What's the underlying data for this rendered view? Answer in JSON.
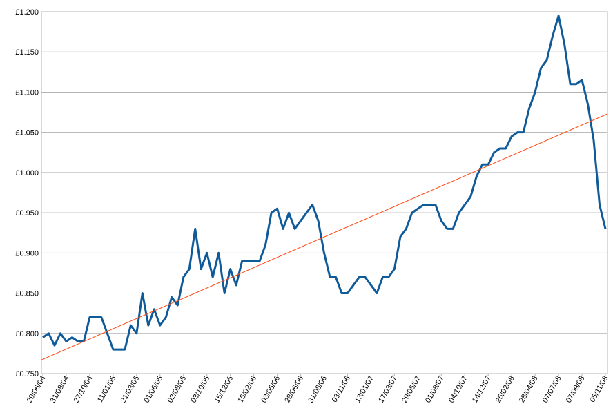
{
  "chart_data": {
    "type": "line",
    "categories": [
      "29/06/04",
      null,
      null,
      null,
      "31/08/04",
      null,
      null,
      null,
      "27/10/04",
      null,
      null,
      null,
      "11/01/05",
      null,
      null,
      null,
      "21/03/05",
      null,
      null,
      null,
      "01/06/05",
      null,
      null,
      null,
      "02/08/05",
      null,
      null,
      null,
      "03/10/05",
      null,
      null,
      null,
      "15/12/05",
      null,
      null,
      null,
      "15/02/06",
      null,
      null,
      null,
      "03/05/06",
      null,
      null,
      null,
      "28/06/06",
      null,
      null,
      null,
      "31/08/06",
      null,
      null,
      null,
      "03/11/06",
      null,
      null,
      null,
      "13/01/07",
      null,
      null,
      null,
      "17/03/07",
      null,
      null,
      null,
      "29/05/07",
      null,
      null,
      null,
      "01/08/07",
      null,
      null,
      null,
      "04/10/07",
      null,
      null,
      null,
      "14/12/07",
      null,
      null,
      null,
      "25/02/08",
      null,
      null,
      null,
      "28/04/08",
      null,
      null,
      null,
      "07/07/08",
      null,
      null,
      null,
      "07/09/08",
      null,
      null,
      null,
      "05/11/08"
    ],
    "series": [
      {
        "color": "#0f5b9a",
        "values": [
          0.795,
          0.8,
          0.785,
          0.8,
          0.79,
          0.795,
          0.79,
          0.79,
          0.82,
          0.82,
          0.82,
          0.8,
          0.78,
          0.78,
          0.78,
          0.81,
          0.8,
          0.85,
          0.81,
          0.83,
          0.81,
          0.82,
          0.845,
          0.835,
          0.87,
          0.88,
          0.93,
          0.88,
          0.9,
          0.87,
          0.9,
          0.85,
          0.88,
          0.86,
          0.89,
          0.89,
          0.89,
          0.89,
          0.91,
          0.95,
          0.955,
          0.93,
          0.95,
          0.93,
          0.94,
          0.95,
          0.96,
          0.94,
          0.9,
          0.87,
          0.87,
          0.85,
          0.85,
          0.86,
          0.87,
          0.87,
          0.86,
          0.85,
          0.87,
          0.87,
          0.88,
          0.92,
          0.93,
          0.95,
          0.955,
          0.96,
          0.96,
          0.96,
          0.94,
          0.93,
          0.93,
          0.95,
          0.96,
          0.97,
          0.995,
          1.01,
          1.01,
          1.025,
          1.03,
          1.03,
          1.045,
          1.05,
          1.05,
          1.08,
          1.1,
          1.13,
          1.14,
          1.17,
          1.195,
          1.16,
          1.11,
          1.11,
          1.115,
          1.085,
          1.04,
          0.96,
          0.93
        ]
      }
    ],
    "trendline": {
      "color": "#ff4a12",
      "start": 0.767,
      "end": 1.073
    },
    "ylim": [
      0.75,
      1.2
    ],
    "yticks": [
      {
        "value": 0.75,
        "label": "£0.750"
      },
      {
        "value": 0.8,
        "label": "£0.800"
      },
      {
        "value": 0.85,
        "label": "£0.850"
      },
      {
        "value": 0.9,
        "label": "£0.900"
      },
      {
        "value": 0.95,
        "label": "£0.950"
      },
      {
        "value": 1.0,
        "label": "£1.000"
      },
      {
        "value": 1.05,
        "label": "£1.050"
      },
      {
        "value": 1.1,
        "label": "£1.100"
      },
      {
        "value": 1.15,
        "label": "£1.150"
      },
      {
        "value": 1.2,
        "label": "£1.200"
      }
    ],
    "grid": true
  }
}
